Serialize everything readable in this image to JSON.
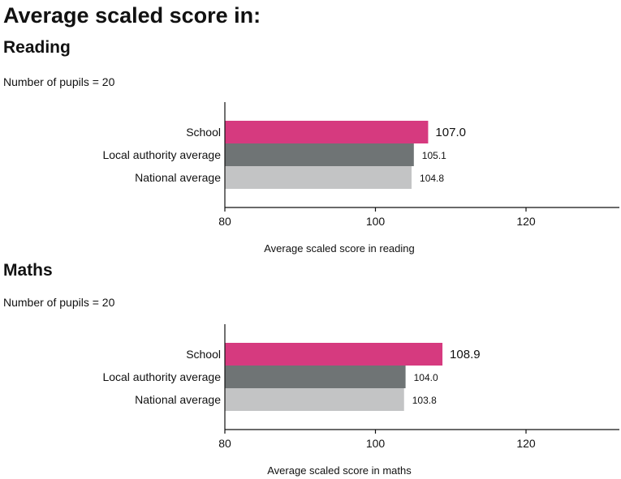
{
  "page_title": "Average scaled score in:",
  "colors": {
    "school": "#d63a7f",
    "local": "#6f7475",
    "national": "#c3c4c5",
    "axis": "#111111"
  },
  "chart_data": [
    {
      "type": "bar",
      "orientation": "horizontal",
      "section_title": "Reading",
      "pupils_text": "Number of pupils = 20",
      "categories": [
        "School",
        "Local authority average",
        "National average"
      ],
      "values": [
        107.0,
        105.1,
        104.8
      ],
      "value_labels": [
        "107.0",
        "105.1",
        "104.8"
      ],
      "xlabel": "Average scaled score in reading",
      "xlim": [
        80,
        132
      ],
      "xticks": [
        80,
        100,
        120
      ],
      "xtick_labels": [
        "80",
        "100",
        "120"
      ],
      "grid": false
    },
    {
      "type": "bar",
      "orientation": "horizontal",
      "section_title": "Maths",
      "pupils_text": "Number of pupils = 20",
      "categories": [
        "School",
        "Local authority average",
        "National average"
      ],
      "values": [
        108.9,
        104.0,
        103.8
      ],
      "value_labels": [
        "108.9",
        "104.0",
        "103.8"
      ],
      "xlabel": "Average scaled score in maths",
      "xlim": [
        80,
        132
      ],
      "xticks": [
        80,
        100,
        120
      ],
      "xtick_labels": [
        "80",
        "100",
        "120"
      ],
      "grid": false
    }
  ]
}
